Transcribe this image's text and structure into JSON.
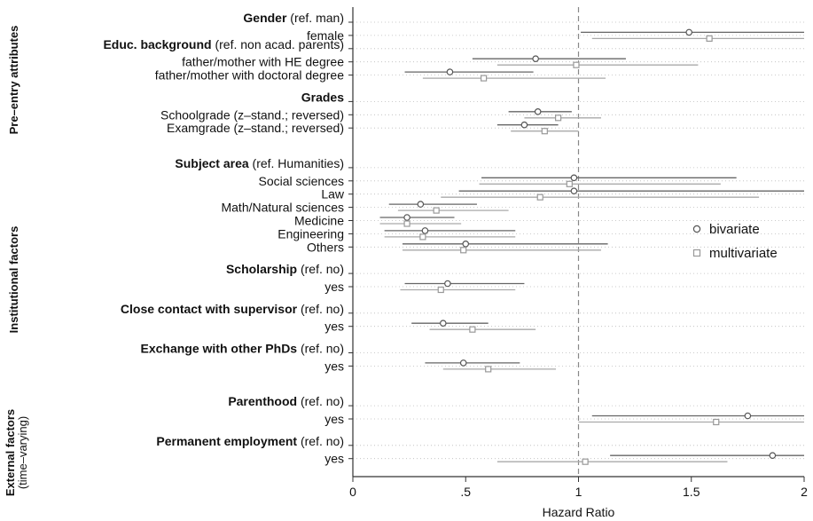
{
  "chart_data": {
    "type": "scatter",
    "xlabel": "Hazard Ratio",
    "xlim": [
      0,
      2
    ],
    "xticks": [
      {
        "value": 0,
        "label": "0"
      },
      {
        "value": 0.5,
        "label": ".5"
      },
      {
        "value": 1,
        "label": "1"
      },
      {
        "value": 1.5,
        "label": "1.5"
      },
      {
        "value": 2,
        "label": "2"
      }
    ],
    "reference_line": 1,
    "legend": {
      "position": "right",
      "entries": [
        {
          "name": "bivariate",
          "marker": "circle",
          "color": "#555555"
        },
        {
          "name": "multivariate",
          "marker": "square",
          "color": "#999999"
        }
      ]
    },
    "groups": [
      {
        "title": "Pre–entry attributes",
        "subtitle": ""
      },
      {
        "title": "Institutional factors",
        "subtitle": ""
      },
      {
        "title": "External factors",
        "subtitle": "(time–varying)"
      }
    ],
    "rows": [
      {
        "kind": "header",
        "bold": "Gender",
        "rest": " (ref. man)",
        "group": 0
      },
      {
        "kind": "data",
        "label": "female",
        "group": 0,
        "bi": 1.49,
        "bi_lo": 1.01,
        "bi_hi": 2.0,
        "mv": 1.58,
        "mv_lo": 1.06,
        "mv_hi": 2.0
      },
      {
        "kind": "header",
        "bold": "Educ. background",
        "rest": " (ref. non acad. parents)",
        "group": 0
      },
      {
        "kind": "data",
        "label": "father/mother with HE degree",
        "group": 0,
        "bi": 0.81,
        "bi_lo": 0.53,
        "bi_hi": 1.21,
        "mv": 0.99,
        "mv_lo": 0.64,
        "mv_hi": 1.53
      },
      {
        "kind": "data",
        "label": "father/mother with doctoral degree",
        "group": 0,
        "bi": 0.43,
        "bi_lo": 0.23,
        "bi_hi": 0.8,
        "mv": 0.58,
        "mv_lo": 0.31,
        "mv_hi": 1.12
      },
      {
        "kind": "gap"
      },
      {
        "kind": "header",
        "bold": "Grades",
        "rest": "",
        "group": 0
      },
      {
        "kind": "data",
        "label": "Schoolgrade (z–stand.; reversed)",
        "group": 0,
        "bi": 0.82,
        "bi_lo": 0.69,
        "bi_hi": 0.97,
        "mv": 0.91,
        "mv_lo": 0.76,
        "mv_hi": 1.1
      },
      {
        "kind": "data",
        "label": "Examgrade (z–stand.; reversed)",
        "group": 0,
        "bi": 0.76,
        "bi_lo": 0.64,
        "bi_hi": 0.91,
        "mv": 0.85,
        "mv_lo": 0.7,
        "mv_hi": 1.0
      },
      {
        "kind": "gap"
      },
      {
        "kind": "gap"
      },
      {
        "kind": "header",
        "bold": "Subject area",
        "rest": " (ref. Humanities)",
        "group": 1
      },
      {
        "kind": "data",
        "label": "Social sciences",
        "group": 1,
        "bi": 0.98,
        "bi_lo": 0.57,
        "bi_hi": 1.7,
        "mv": 0.96,
        "mv_lo": 0.56,
        "mv_hi": 1.63
      },
      {
        "kind": "data",
        "label": "Law",
        "group": 1,
        "bi": 0.98,
        "bi_lo": 0.47,
        "bi_hi": 2.0,
        "mv": 0.83,
        "mv_lo": 0.39,
        "mv_hi": 1.8
      },
      {
        "kind": "data",
        "label": "Math/Natural sciences",
        "group": 1,
        "bi": 0.3,
        "bi_lo": 0.16,
        "bi_hi": 0.55,
        "mv": 0.37,
        "mv_lo": 0.2,
        "mv_hi": 0.69
      },
      {
        "kind": "data",
        "label": "Medicine",
        "group": 1,
        "bi": 0.24,
        "bi_lo": 0.12,
        "bi_hi": 0.45,
        "mv": 0.24,
        "mv_lo": 0.12,
        "mv_hi": 0.48
      },
      {
        "kind": "data",
        "label": "Engineering",
        "group": 1,
        "bi": 0.32,
        "bi_lo": 0.14,
        "bi_hi": 0.72,
        "mv": 0.31,
        "mv_lo": 0.14,
        "mv_hi": 0.72
      },
      {
        "kind": "data",
        "label": "Others",
        "group": 1,
        "bi": 0.5,
        "bi_lo": 0.22,
        "bi_hi": 1.13,
        "mv": 0.49,
        "mv_lo": 0.22,
        "mv_hi": 1.1
      },
      {
        "kind": "gap"
      },
      {
        "kind": "header",
        "bold": "Scholarship",
        "rest": "  (ref. no)",
        "group": 1
      },
      {
        "kind": "data",
        "label": "yes",
        "group": 1,
        "bi": 0.42,
        "bi_lo": 0.23,
        "bi_hi": 0.76,
        "mv": 0.39,
        "mv_lo": 0.21,
        "mv_hi": 0.72
      },
      {
        "kind": "gap"
      },
      {
        "kind": "header",
        "bold": "Close contact with supervisor",
        "rest": " (ref. no)",
        "group": 1
      },
      {
        "kind": "data",
        "label": "yes",
        "group": 1,
        "bi": 0.4,
        "bi_lo": 0.26,
        "bi_hi": 0.6,
        "mv": 0.53,
        "mv_lo": 0.34,
        "mv_hi": 0.81
      },
      {
        "kind": "gap"
      },
      {
        "kind": "header",
        "bold": "Exchange with other PhDs",
        "rest": " (ref. no)",
        "group": 1
      },
      {
        "kind": "data",
        "label": "yes",
        "group": 1,
        "bi": 0.49,
        "bi_lo": 0.32,
        "bi_hi": 0.74,
        "mv": 0.6,
        "mv_lo": 0.4,
        "mv_hi": 0.9
      },
      {
        "kind": "gap"
      },
      {
        "kind": "gap"
      },
      {
        "kind": "header",
        "bold": "Parenthood",
        "rest": " (ref. no)",
        "group": 2
      },
      {
        "kind": "data",
        "label": "yes",
        "group": 2,
        "bi": 1.75,
        "bi_lo": 1.06,
        "bi_hi": 2.0,
        "mv": 1.61,
        "mv_lo": 1.0,
        "mv_hi": 2.0
      },
      {
        "kind": "gap"
      },
      {
        "kind": "header",
        "bold": "Permanent employment",
        "rest": " (ref. no)",
        "group": 2
      },
      {
        "kind": "data",
        "label": "yes",
        "group": 2,
        "bi": 1.86,
        "bi_lo": 1.14,
        "bi_hi": 2.0,
        "mv": 1.03,
        "mv_lo": 0.64,
        "mv_hi": 1.66
      }
    ]
  }
}
